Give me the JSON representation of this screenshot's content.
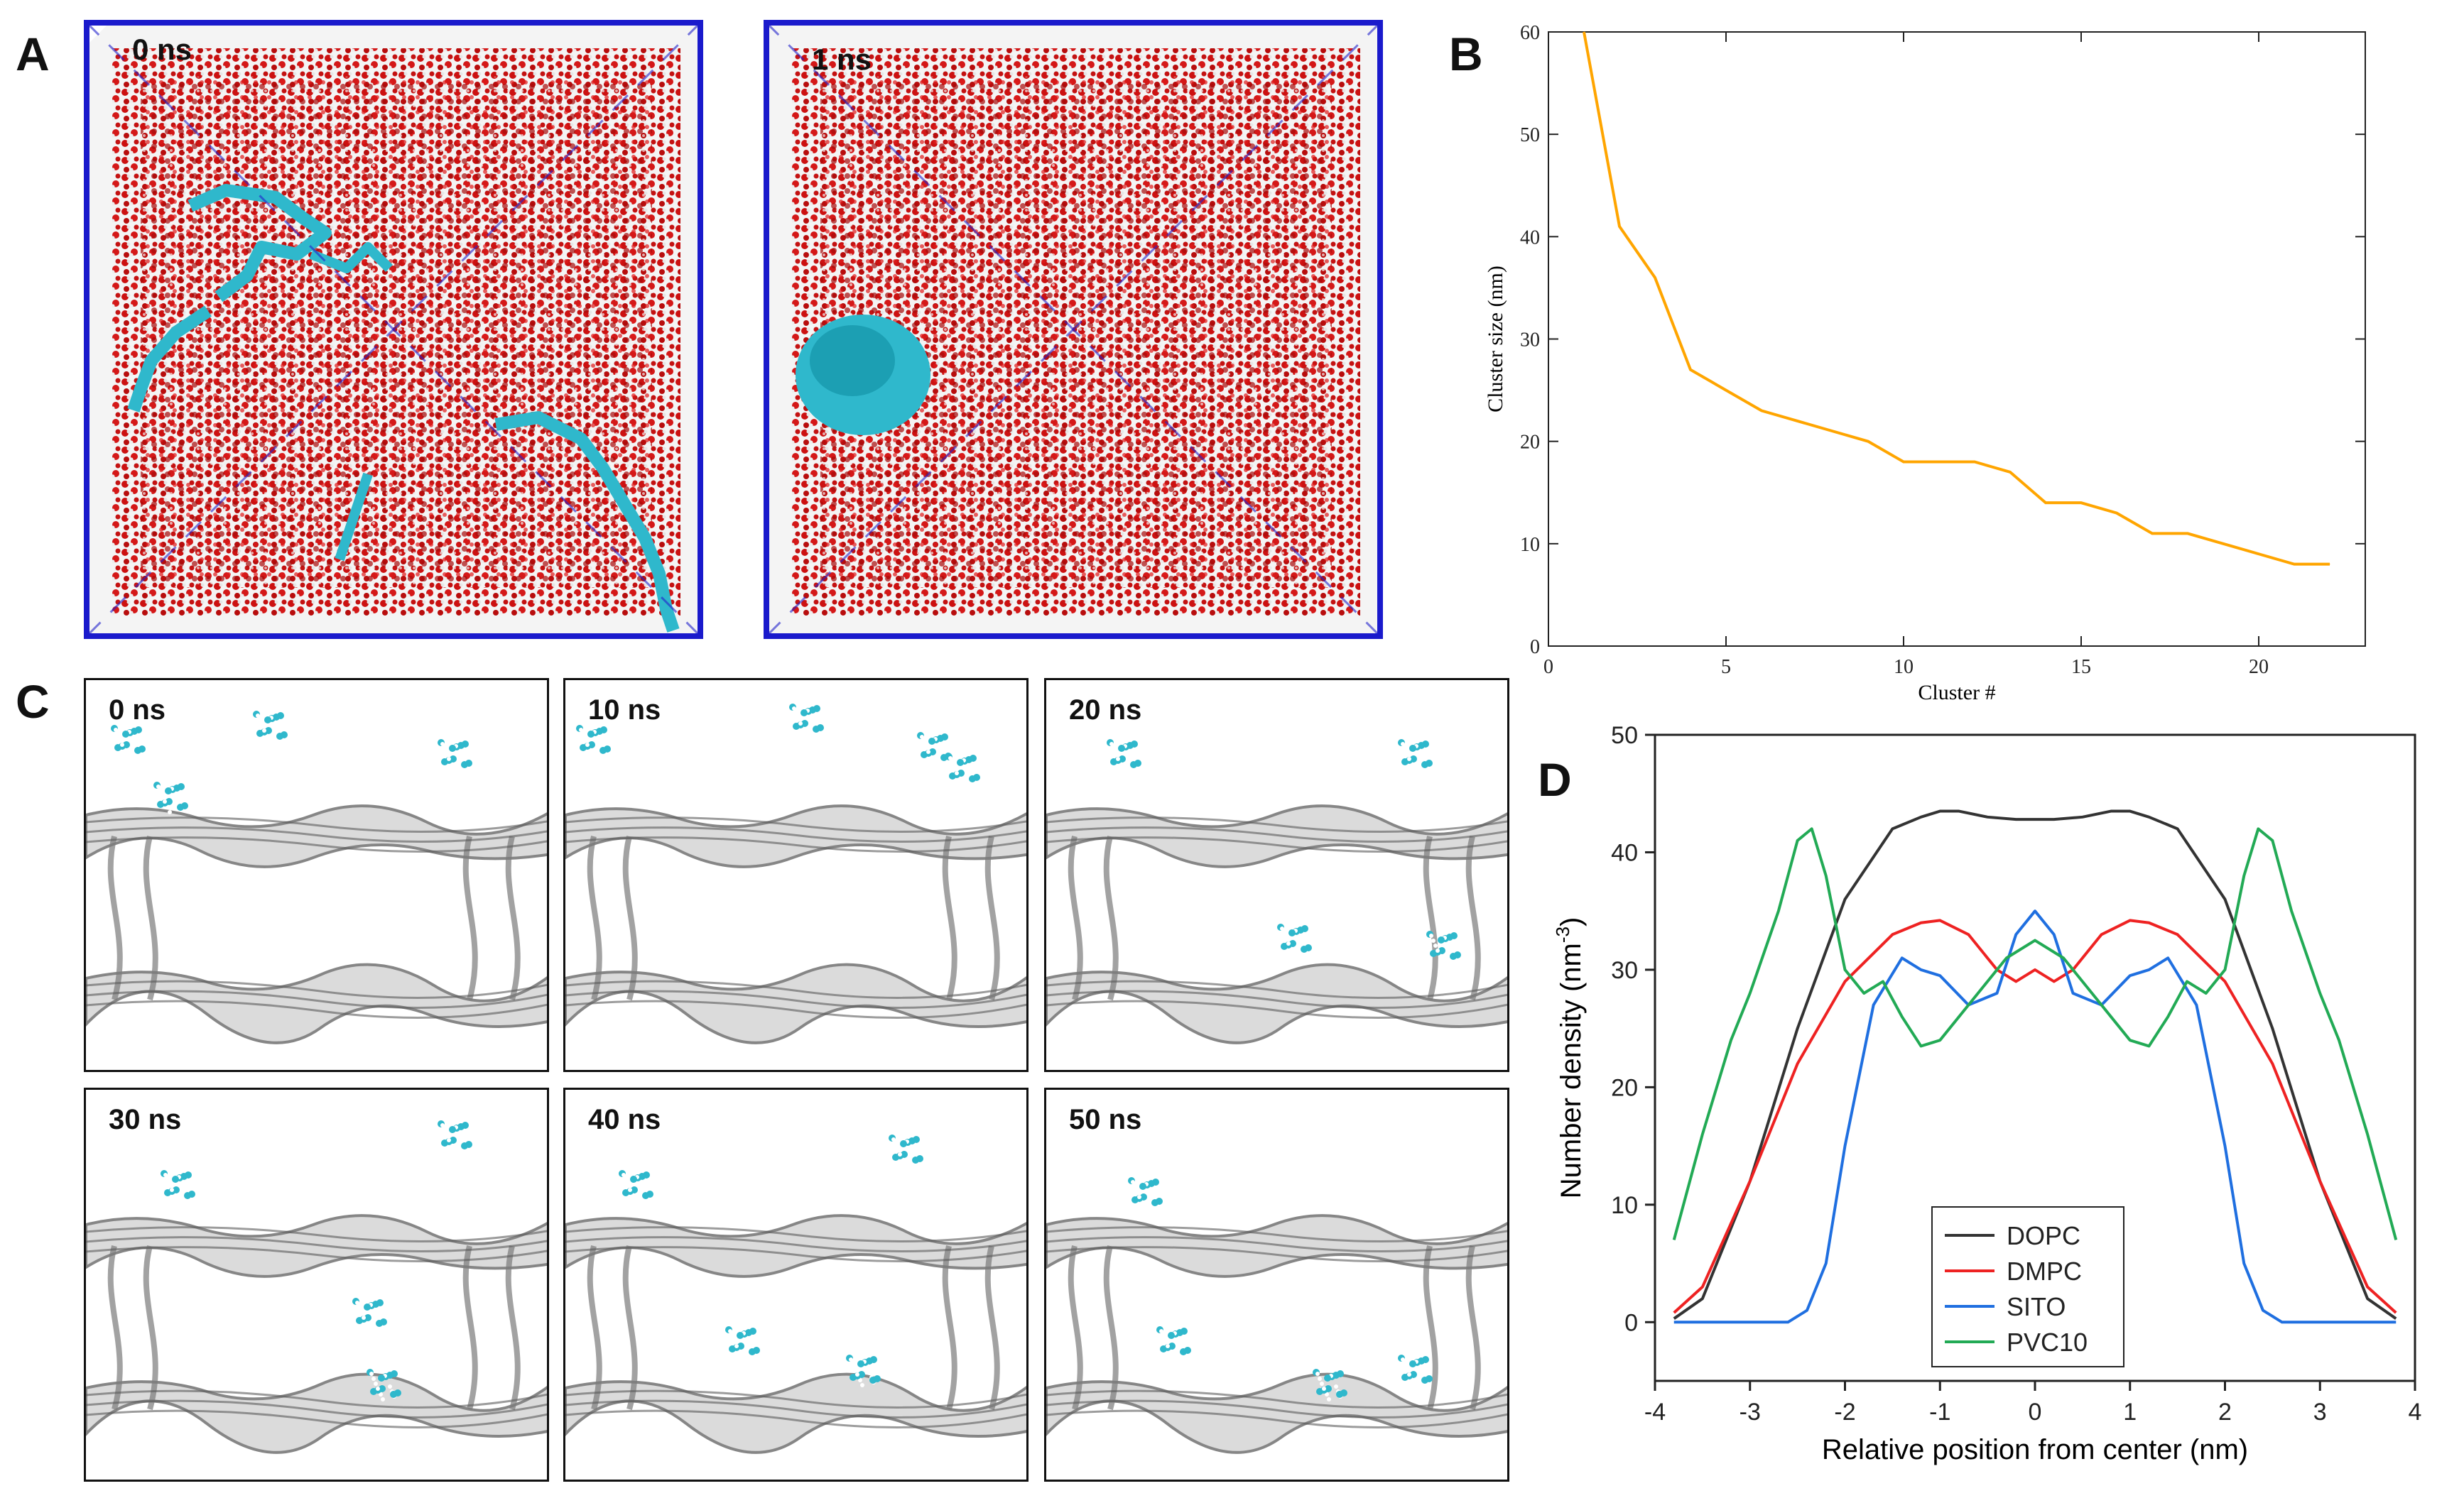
{
  "panels": {
    "a": {
      "letter": "A",
      "left_time": "0 ns",
      "right_time": "1 ns"
    },
    "b": {
      "letter": "B"
    },
    "c": {
      "letter": "C",
      "times": [
        "0 ns",
        "10 ns",
        "20 ns",
        "30 ns",
        "40 ns",
        "50 ns"
      ]
    },
    "d": {
      "letter": "D"
    }
  },
  "colors": {
    "water_oxygen": "#cc1111",
    "water_hydrogen": "#e8e8e8",
    "polymer": "#2fb8cc",
    "box_edge": "#1a1acc",
    "membrane": "#7a7a7a",
    "cluster_line": "#ffa500",
    "dopc": "#333333",
    "dmpc": "#ee2222",
    "sito": "#1f6fe0",
    "pvc10": "#22aa55"
  },
  "chart_data": [
    {
      "type": "line",
      "title": "",
      "xlabel": "Cluster #",
      "ylabel": "Cluster size (nm)",
      "xlim": [
        0,
        23
      ],
      "ylim": [
        0,
        60
      ],
      "xticks": [
        "0",
        "5",
        "10",
        "15",
        "20"
      ],
      "yticks": [
        "0",
        "10",
        "20",
        "30",
        "40",
        "50",
        "60"
      ],
      "x": [
        1,
        2,
        3,
        4,
        5,
        6,
        7,
        8,
        9,
        10,
        11,
        12,
        13,
        14,
        15,
        16,
        17,
        18,
        19,
        20,
        21,
        22
      ],
      "series": [
        {
          "name": "Cluster size",
          "values": [
            60,
            41,
            36,
            27,
            25,
            23,
            22,
            21,
            20,
            18,
            18,
            18,
            17,
            14,
            14,
            13,
            11,
            11,
            10,
            9,
            8,
            8
          ]
        }
      ]
    },
    {
      "type": "line",
      "title": "",
      "xlabel": "Relative position from center (nm)",
      "ylabel": "Number density (nm",
      "ylabel_sup": "-3",
      "ylabel_end": ")",
      "xlim": [
        -4,
        4
      ],
      "ylim": [
        -5,
        50
      ],
      "xticks": [
        "-4",
        "-3",
        "-2",
        "-1",
        "0",
        "1",
        "2",
        "3",
        "4"
      ],
      "yticks": [
        "0",
        "10",
        "20",
        "30",
        "40",
        "50"
      ],
      "legend_position": "bottom-center",
      "series": [
        {
          "name": "DOPC",
          "x": [
            -3.8,
            -3.5,
            -3.0,
            -2.5,
            -2.0,
            -1.5,
            -1.2,
            -1.0,
            -0.8,
            -0.5,
            -0.2,
            0.0,
            0.2,
            0.5,
            0.8,
            1.0,
            1.2,
            1.5,
            2.0,
            2.5,
            3.0,
            3.5,
            3.8
          ],
          "y": [
            0.3,
            2,
            12,
            25,
            36,
            42,
            43,
            43.5,
            43.5,
            43,
            42.8,
            42.8,
            42.8,
            43,
            43.5,
            43.5,
            43,
            42,
            36,
            25,
            12,
            2,
            0.3
          ]
        },
        {
          "name": "DMPC",
          "x": [
            -3.8,
            -3.5,
            -3.0,
            -2.5,
            -2.0,
            -1.5,
            -1.2,
            -1.0,
            -0.7,
            -0.4,
            -0.2,
            0.0,
            0.2,
            0.4,
            0.7,
            1.0,
            1.2,
            1.5,
            2.0,
            2.5,
            3.0,
            3.5,
            3.8
          ],
          "y": [
            0.8,
            3,
            12,
            22,
            29,
            33,
            34,
            34.2,
            33,
            30,
            29,
            30,
            29,
            30,
            33,
            34.2,
            34,
            33,
            29,
            22,
            12,
            3,
            0.8
          ]
        },
        {
          "name": "SITO",
          "x": [
            -3.8,
            -3.0,
            -2.6,
            -2.4,
            -2.2,
            -2.0,
            -1.7,
            -1.4,
            -1.2,
            -1.0,
            -0.7,
            -0.4,
            -0.2,
            0.0,
            0.2,
            0.4,
            0.7,
            1.0,
            1.2,
            1.4,
            1.7,
            2.0,
            2.2,
            2.4,
            2.6,
            3.0,
            3.8
          ],
          "y": [
            0,
            0,
            0,
            1,
            5,
            15,
            27,
            31,
            30,
            29.5,
            27,
            28,
            33,
            35,
            33,
            28,
            27,
            29.5,
            30,
            31,
            27,
            15,
            5,
            1,
            0,
            0,
            0
          ]
        },
        {
          "name": "PVC10",
          "x": [
            -3.8,
            -3.5,
            -3.2,
            -3.0,
            -2.7,
            -2.5,
            -2.35,
            -2.2,
            -2.0,
            -1.8,
            -1.6,
            -1.4,
            -1.2,
            -1.0,
            -0.6,
            -0.3,
            0.0,
            0.3,
            0.6,
            1.0,
            1.2,
            1.4,
            1.6,
            1.8,
            2.0,
            2.2,
            2.35,
            2.5,
            2.7,
            3.0,
            3.2,
            3.5,
            3.8
          ],
          "y": [
            7,
            16,
            24,
            28,
            35,
            41,
            42,
            38,
            30,
            28,
            29,
            26,
            23.5,
            24,
            28,
            31,
            32.5,
            31,
            28,
            24,
            23.5,
            26,
            29,
            28,
            30,
            38,
            42,
            41,
            35,
            28,
            24,
            16,
            7
          ]
        }
      ]
    }
  ]
}
